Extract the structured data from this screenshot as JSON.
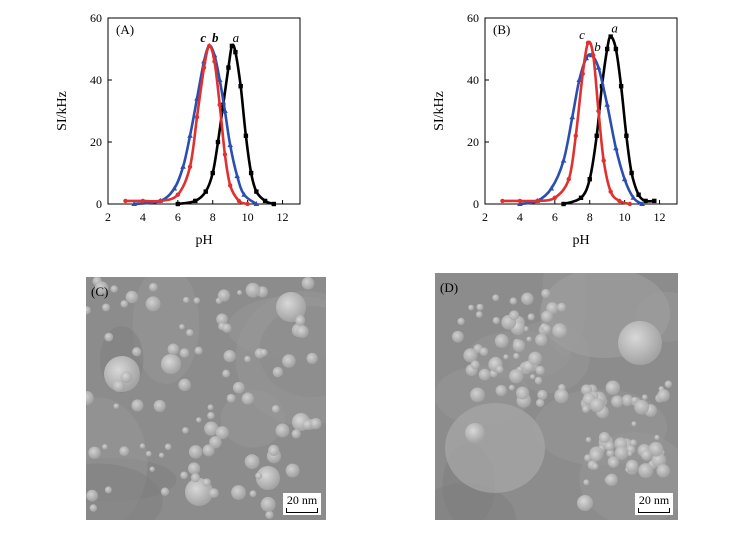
{
  "chart_data": [
    {
      "type": "line",
      "panel_label": "(A)",
      "xlabel": "pH",
      "ylabel": "SI/kHz",
      "xlim": [
        2,
        13
      ],
      "ylim": [
        0,
        60
      ],
      "xticks": [
        2,
        4,
        6,
        8,
        10,
        12
      ],
      "yticks": [
        0,
        20,
        40,
        60
      ],
      "series": [
        {
          "name": "a",
          "color": "#000000",
          "marker": "square",
          "x": [
            6.0,
            7.0,
            7.6,
            8.0,
            8.3,
            8.6,
            8.9,
            9.1,
            9.3,
            9.6,
            9.9,
            10.2,
            10.5,
            11.0,
            11.5
          ],
          "y": [
            0,
            1,
            4,
            10,
            20,
            32,
            44,
            51,
            49,
            38,
            22,
            10,
            4,
            1,
            0
          ]
        },
        {
          "name": "b",
          "color": "#2b4fb0",
          "marker": "triangle",
          "x": [
            3.5,
            5.0,
            5.8,
            6.3,
            6.7,
            7.1,
            7.5,
            7.8,
            8.1,
            8.4,
            8.7,
            9.0,
            9.4,
            9.8,
            10.5
          ],
          "y": [
            0,
            1,
            5,
            12,
            22,
            34,
            46,
            51,
            48,
            40,
            30,
            19,
            9,
            3,
            0
          ]
        },
        {
          "name": "c",
          "color": "#e03030",
          "marker": "circle",
          "x": [
            3.0,
            4.0,
            5.0,
            6.0,
            6.7,
            7.1,
            7.5,
            7.8,
            8.1,
            8.4,
            8.7,
            9.0,
            9.5,
            10.0
          ],
          "y": [
            1,
            1,
            1,
            3,
            12,
            28,
            44,
            51,
            46,
            32,
            16,
            6,
            1,
            0
          ]
        }
      ],
      "curve_labels": [
        "c",
        "b",
        "a"
      ]
    },
    {
      "type": "line",
      "panel_label": "(B)",
      "xlabel": "pH",
      "ylabel": "SI/kHz",
      "xlim": [
        2,
        13
      ],
      "ylim": [
        0,
        60
      ],
      "xticks": [
        2,
        4,
        6,
        8,
        10,
        12
      ],
      "yticks": [
        0,
        20,
        40,
        60
      ],
      "series": [
        {
          "name": "a",
          "color": "#000000",
          "marker": "square",
          "x": [
            6.5,
            7.5,
            8.0,
            8.4,
            8.7,
            9.0,
            9.2,
            9.5,
            9.8,
            10.1,
            10.4,
            10.8,
            11.2,
            11.7
          ],
          "y": [
            0,
            2,
            8,
            22,
            38,
            50,
            54,
            50,
            38,
            22,
            10,
            3,
            1,
            1
          ]
        },
        {
          "name": "b",
          "color": "#2b4fb0",
          "marker": "triangle",
          "x": [
            4.0,
            5.0,
            5.8,
            6.5,
            7.0,
            7.4,
            7.8,
            8.1,
            8.5,
            9.0,
            9.5,
            10.0,
            10.5,
            11.0
          ],
          "y": [
            0,
            1,
            5,
            14,
            28,
            40,
            47,
            48,
            44,
            32,
            18,
            8,
            2,
            0
          ]
        },
        {
          "name": "c",
          "color": "#e03030",
          "marker": "circle",
          "x": [
            3.0,
            4.0,
            5.0,
            6.0,
            6.8,
            7.2,
            7.6,
            7.9,
            8.2,
            8.5,
            8.8,
            9.2,
            9.7,
            10.3
          ],
          "y": [
            1,
            1,
            1,
            2,
            8,
            22,
            42,
            52,
            48,
            30,
            14,
            4,
            1,
            0
          ]
        }
      ],
      "curve_labels": [
        "c",
        "b",
        "a"
      ]
    }
  ],
  "micrographs": [
    {
      "label": "(C)",
      "scale_text": "20 nm"
    },
    {
      "label": "(D)",
      "scale_text": "20 nm"
    }
  ]
}
